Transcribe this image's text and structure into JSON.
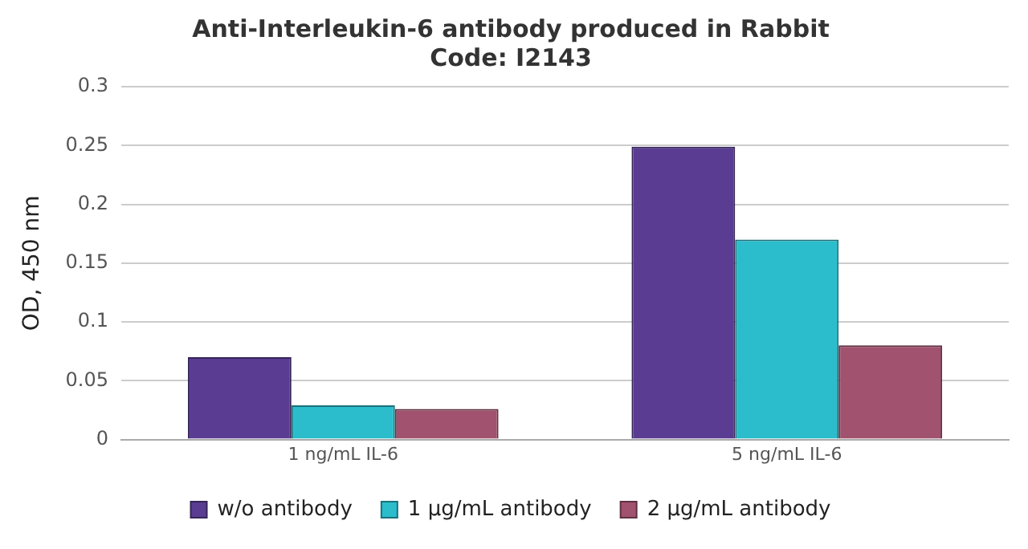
{
  "chart_data": {
    "type": "bar",
    "title": "Anti-Interleukin-6 antibody produced in Rabbit",
    "subtitle": "Code: I2143",
    "ylabel": "OD, 450 nm",
    "categories": [
      "1 ng/mL IL-6",
      "5 ng/mL IL-6"
    ],
    "series": [
      {
        "name": "w/o antibody",
        "color": "#5a3d92",
        "values": [
          0.07,
          0.249
        ]
      },
      {
        "name": "1 µg/mL antibody",
        "color": "#2bbdcc",
        "values": [
          0.029,
          0.17
        ]
      },
      {
        "name": "2 µg/mL antibody",
        "color": "#a0526e",
        "values": [
          0.026,
          0.08
        ]
      }
    ],
    "ylim": [
      0,
      0.3
    ],
    "yticks": [
      0,
      0.05,
      0.1,
      0.15,
      0.2,
      0.25,
      0.3
    ],
    "grid": "y",
    "legend": "bottom"
  }
}
